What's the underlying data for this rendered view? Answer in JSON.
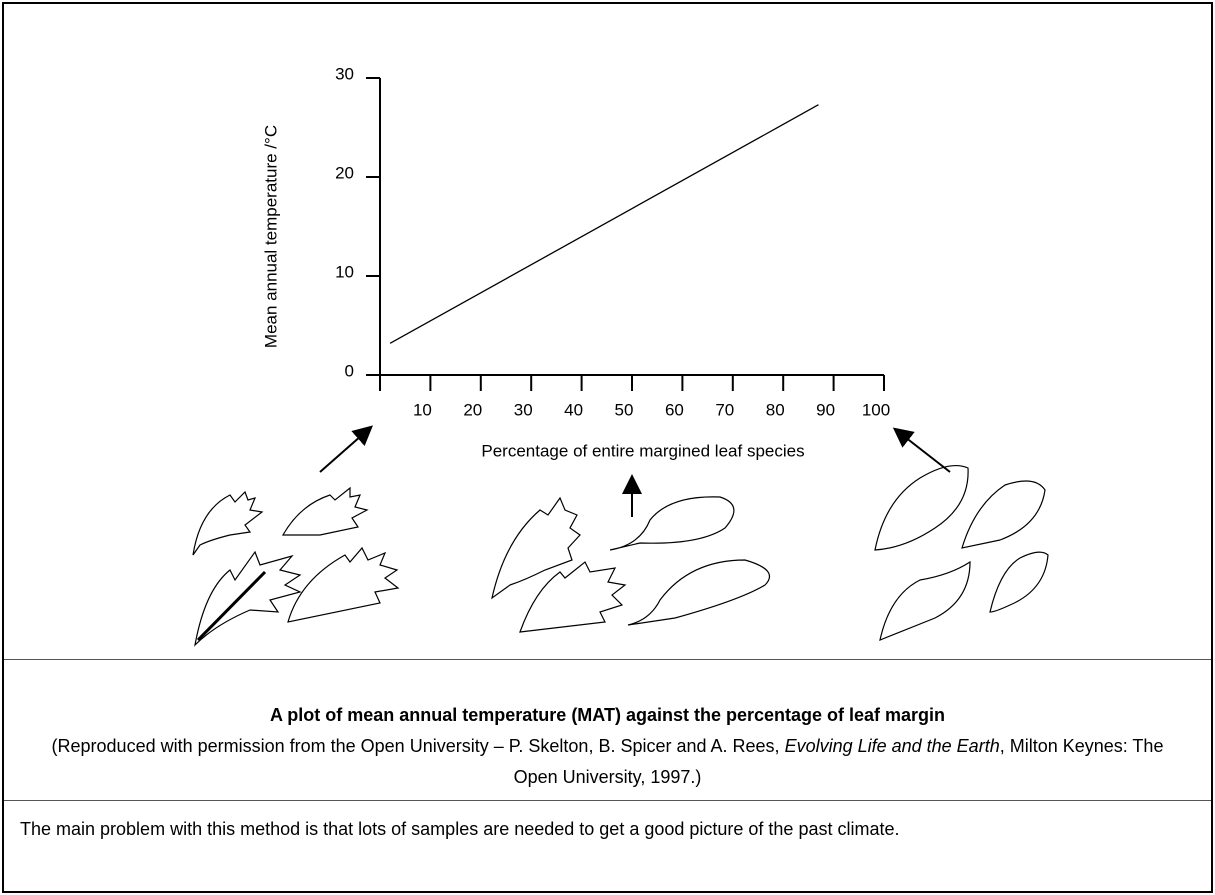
{
  "chart_data": {
    "type": "line",
    "y_label": "Mean annual temperature /°C",
    "x_label": "Percentage of entire margined leaf species",
    "x": [
      2,
      87
    ],
    "values": [
      3.2,
      27.3
    ],
    "xlim": [
      0,
      100
    ],
    "xticks": [
      10,
      20,
      30,
      40,
      50,
      60,
      70,
      80,
      90,
      100
    ],
    "ylim": [
      0,
      30
    ],
    "yticks": [
      0,
      10,
      20,
      30
    ],
    "color": "#000000"
  },
  "caption": {
    "title": "A plot of mean annual temperature (MAT) against the percentage of leaf margin",
    "credit": [
      "(Reproduced with permission from the Open University – P. Skelton, B. Spicer and A. Rees, ",
      "Evolving Life and the Earth",
      ", Milton Keynes: The Open University, 1997.)"
    ]
  },
  "body": "The main problem with this method is that lots of samples are needed to get a good picture of the past climate."
}
